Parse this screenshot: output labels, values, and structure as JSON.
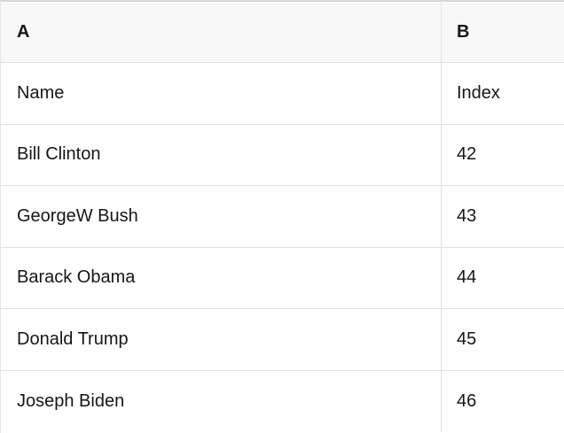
{
  "table": {
    "kind": "spreadsheet-preview",
    "columns": [
      {
        "id": "A",
        "label": "A"
      },
      {
        "id": "B",
        "label": "B"
      }
    ],
    "rows": [
      {
        "A": "Name",
        "B": "Index"
      },
      {
        "A": "Bill Clinton",
        "B": "42"
      },
      {
        "A": "GeorgeW Bush",
        "B": "43"
      },
      {
        "A": "Barack Obama",
        "B": "44"
      },
      {
        "A": "Donald Trump",
        "B": "45"
      },
      {
        "A": "Joseph Biden",
        "B": "46"
      }
    ]
  },
  "colors": {
    "header_background": "#f8f8f8",
    "row_background": "#ffffff",
    "grid_line": "#e2e2e2",
    "top_border": "#d8d8d8",
    "text": "#161616"
  }
}
